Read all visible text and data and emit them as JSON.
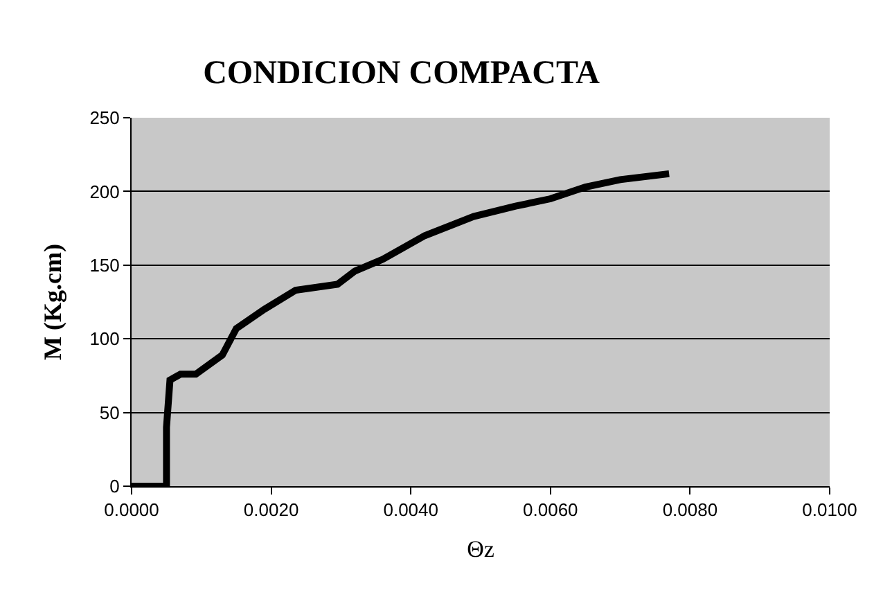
{
  "chart_data": {
    "type": "line",
    "title": "CONDICION COMPACTA",
    "xlabel": "Θz",
    "ylabel": "M (Kg.cm)",
    "x": [
      0.0,
      0.0005,
      0.0005,
      0.00055,
      0.0007,
      0.00092,
      0.0013,
      0.0015,
      0.0019,
      0.00235,
      0.00295,
      0.0032,
      0.0036,
      0.0042,
      0.0049,
      0.0055,
      0.006,
      0.0065,
      0.007,
      0.0077
    ],
    "series": [
      {
        "color": "#000000",
        "values": [
          0,
          0,
          40,
          72,
          76,
          76,
          89,
          107,
          120,
          133,
          137,
          146,
          154,
          170,
          183,
          190,
          195,
          203,
          208,
          212
        ]
      }
    ],
    "xlim": [
      0,
      0.01
    ],
    "xticks": [
      {
        "value": 0,
        "label": "0.0000"
      },
      {
        "value": 0.002,
        "label": "0.0020"
      },
      {
        "value": 0.004,
        "label": "0.0040"
      },
      {
        "value": 0.006,
        "label": "0.0060"
      },
      {
        "value": 0.008,
        "label": "0.0080"
      },
      {
        "value": 0.01,
        "label": "0.0100"
      }
    ],
    "ylim": [
      0,
      250
    ],
    "yticks": [
      0,
      50,
      100,
      150,
      200,
      250
    ],
    "grid": "y",
    "legend": false,
    "marker": "none",
    "line_style": "solid"
  }
}
